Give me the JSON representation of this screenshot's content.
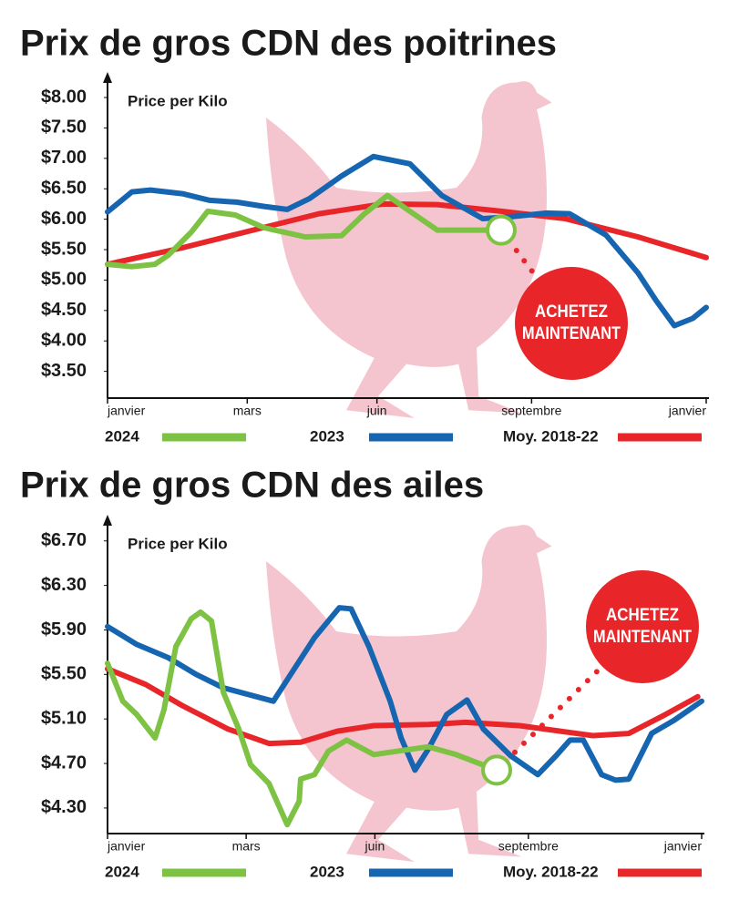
{
  "chart_data": [
    {
      "type": "line",
      "title": "Prix de gros CDN des poitrines",
      "y_label": "Price per Kilo",
      "xlim": [
        0,
        12
      ],
      "xticks": [
        {
          "value": 0,
          "label": "janvier"
        },
        {
          "value": 2.8,
          "label": "mars"
        },
        {
          "value": 5.4,
          "label": "juin"
        },
        {
          "value": 8.5,
          "label": "septembre"
        },
        {
          "value": 12,
          "label": "janvier"
        }
      ],
      "ylim": [
        3.06,
        8.3
      ],
      "yticks": [
        {
          "value": 3.5,
          "label": "$3.50"
        },
        {
          "value": 4,
          "label": "$4.00"
        },
        {
          "value": 4.5,
          "label": "$4.50"
        },
        {
          "value": 5,
          "label": "$5.00"
        },
        {
          "value": 5.5,
          "label": "$5.50"
        },
        {
          "value": 6,
          "label": "$6.00"
        },
        {
          "value": 6.5,
          "label": "$6.50"
        },
        {
          "value": 7,
          "label": "$7.00"
        },
        {
          "value": 7.5,
          "label": "$7.50"
        },
        {
          "value": 8,
          "label": "$8.00"
        }
      ],
      "grid": false,
      "series": [
        {
          "name": "2024",
          "color": "#7dc243",
          "x": [
            0,
            0.49,
            0.95,
            1.22,
            1.68,
            2.01,
            2.56,
            3.14,
            3.96,
            4.69,
            5.15,
            5.61,
            6.06,
            6.61,
            7.34,
            7.89
          ],
          "values": [
            5.26,
            5.22,
            5.26,
            5.41,
            5.79,
            6.13,
            6.07,
            5.86,
            5.71,
            5.73,
            6.09,
            6.39,
            6.13,
            5.82,
            5.82,
            5.82
          ]
        },
        {
          "name": "2023",
          "color": "#1565b0",
          "x": [
            0,
            0.49,
            0.86,
            1.5,
            2.05,
            2.59,
            3.14,
            3.6,
            4.05,
            4.69,
            5.33,
            6.06,
            6.7,
            7.52,
            8.07,
            8.8,
            9.26,
            9.99,
            10.63,
            10.99,
            11.36,
            11.73,
            12
          ],
          "values": [
            6.12,
            6.45,
            6.48,
            6.42,
            6.31,
            6.28,
            6.21,
            6.16,
            6.34,
            6.71,
            7.03,
            6.91,
            6.39,
            6.01,
            6.04,
            6.1,
            6.09,
            5.74,
            5.12,
            4.67,
            4.25,
            4.37,
            4.55
          ]
        },
        {
          "name": "Moy. 2018-22",
          "color": "#e8262a",
          "x": [
            0,
            1.5,
            2.96,
            4.24,
            5.52,
            6.61,
            7.89,
            9.17,
            10.63,
            12
          ],
          "values": [
            5.26,
            5.53,
            5.83,
            6.09,
            6.25,
            6.24,
            6.13,
            6.01,
            5.71,
            5.37
          ]
        }
      ],
      "annotation": [
        "ACHETEZ",
        "MAINTENANT"
      ]
    },
    {
      "type": "line",
      "title": "Prix de gros CDN des ailes",
      "y_label": "Price per Kilo",
      "xlim": [
        0,
        12
      ],
      "xticks": [
        {
          "value": 0,
          "label": "janvier"
        },
        {
          "value": 2.8,
          "label": "mars"
        },
        {
          "value": 5.4,
          "label": "juin"
        },
        {
          "value": 8.5,
          "label": "septembre"
        },
        {
          "value": 12,
          "label": "janvier"
        }
      ],
      "ylim": [
        4.07,
        6.87
      ],
      "yticks": [
        {
          "value": 4.3,
          "label": "$4.30"
        },
        {
          "value": 4.7,
          "label": "$4.70"
        },
        {
          "value": 5.1,
          "label": "$5.10"
        },
        {
          "value": 5.5,
          "label": "$5.50"
        },
        {
          "value": 5.9,
          "label": "$5.90"
        },
        {
          "value": 6.3,
          "label": "$6.30"
        },
        {
          "value": 6.7,
          "label": "$6.70"
        }
      ],
      "grid": false,
      "series": [
        {
          "name": "2024",
          "color": "#7dc243",
          "x": [
            0,
            0.31,
            0.59,
            0.96,
            1.14,
            1.38,
            1.69,
            1.88,
            2.1,
            2.34,
            2.65,
            2.89,
            3.26,
            3.63,
            3.87,
            3.9,
            4.18,
            4.46,
            4.83,
            5.38,
            6.48,
            7.04,
            7.86
          ],
          "values": [
            5.6,
            5.26,
            5.14,
            4.93,
            5.18,
            5.75,
            6.0,
            6.06,
            5.98,
            5.34,
            5.01,
            4.69,
            4.52,
            4.15,
            4.36,
            4.56,
            4.6,
            4.81,
            4.91,
            4.78,
            4.85,
            4.78,
            4.64
          ]
        },
        {
          "name": "2023",
          "color": "#1565b0",
          "x": [
            0,
            0.59,
            1.23,
            1.79,
            2.34,
            3.35,
            4.18,
            4.68,
            4.92,
            5.28,
            5.71,
            5.93,
            6.21,
            6.48,
            6.85,
            7.26,
            7.59,
            8.14,
            8.69,
            9.06,
            9.34,
            9.61,
            9.98,
            10.26,
            10.53,
            10.99,
            11.45,
            12
          ],
          "values": [
            5.93,
            5.77,
            5.65,
            5.5,
            5.38,
            5.26,
            5.83,
            6.1,
            6.09,
            5.75,
            5.26,
            4.93,
            4.64,
            4.83,
            5.14,
            5.27,
            5.01,
            4.77,
            4.6,
            4.77,
            4.91,
            4.91,
            4.6,
            4.55,
            4.56,
            4.97,
            5.09,
            5.26
          ]
        },
        {
          "name": "Moy. 2018-22",
          "color": "#e8262a",
          "x": [
            0,
            0.77,
            1.51,
            2.43,
            3.26,
            3.9,
            4.64,
            5.38,
            6.48,
            7.22,
            8.32,
            9.8,
            10.53,
            11.27,
            11.92
          ],
          "values": [
            5.55,
            5.41,
            5.22,
            5.01,
            4.88,
            4.89,
            4.99,
            5.04,
            5.05,
            5.07,
            5.04,
            4.95,
            4.97,
            5.14,
            5.3
          ]
        }
      ],
      "annotation": [
        "ACHETEZ",
        "MAINTENANT"
      ]
    }
  ]
}
